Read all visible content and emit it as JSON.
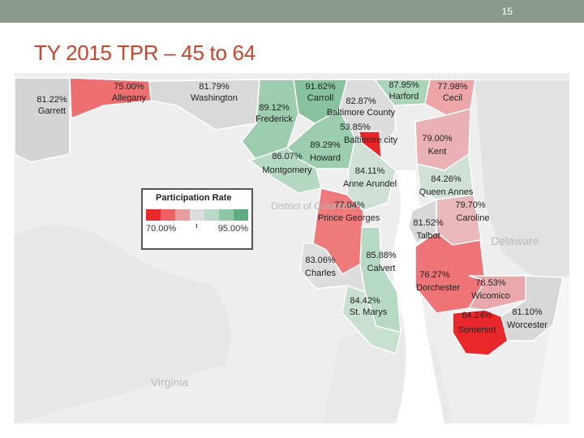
{
  "slide": {
    "page_number": "15",
    "title": "TY 2015 TPR – 45 to 64"
  },
  "legend": {
    "title": "Participation Rate",
    "min_label": "70.00%",
    "max_label": "95.00%",
    "scale_colors": [
      "#e8282b",
      "#ef6063",
      "#e79ca0",
      "#dcdcdc",
      "#b9d8c5",
      "#8fc7a4",
      "#5fae83"
    ]
  },
  "background_labels": [
    "Delaware",
    "Virginia",
    "District of Columbia"
  ],
  "counties": [
    {
      "name": "Garrett",
      "value": "81.22%",
      "color": "#d4d4d4"
    },
    {
      "name": "Allegany",
      "value": "75.00%",
      "color": "#ee6f70"
    },
    {
      "name": "Washington",
      "value": "81.79%",
      "color": "#d9d9d9"
    },
    {
      "name": "Frederick",
      "value": "89.12%",
      "color": "#9ccdae"
    },
    {
      "name": "Carroll",
      "value": "91.62%",
      "color": "#87c19d"
    },
    {
      "name": "Baltimore County",
      "value": "82.87%",
      "color": "#dcdcdc"
    },
    {
      "name": "Harford",
      "value": "87.95%",
      "color": "#a9d4b8"
    },
    {
      "name": "Cecil",
      "value": "77.98%",
      "color": "#eea5a8"
    },
    {
      "name": "Baltimore city",
      "value": "53.85%",
      "color": "#e8262a"
    },
    {
      "name": "Howard",
      "value": "89.29%",
      "color": "#9ccdae"
    },
    {
      "name": "Montgomery",
      "value": "86.07%",
      "color": "#b4d8c1"
    },
    {
      "name": "Anne Arundel",
      "value": "84.11%",
      "color": "#d0e0d5"
    },
    {
      "name": "Kent",
      "value": "79.00%",
      "color": "#eab1b4"
    },
    {
      "name": "Queen Annes",
      "value": "84.26%",
      "color": "#d2e1d6"
    },
    {
      "name": "Prince Georges",
      "value": "77.04%",
      "color": "#ef7a7c"
    },
    {
      "name": "Caroline",
      "value": "79.70%",
      "color": "#e9b8bb"
    },
    {
      "name": "Talbot",
      "value": "81.52%",
      "color": "#d8d8d8"
    },
    {
      "name": "Calvert",
      "value": "85.88%",
      "color": "#b6d9c3"
    },
    {
      "name": "Charles",
      "value": "83.06%",
      "color": "#dddddd"
    },
    {
      "name": "Dorchester",
      "value": "76.27%",
      "color": "#ee7477"
    },
    {
      "name": "St. Marys",
      "value": "84.42%",
      "color": "#c8e0cf"
    },
    {
      "name": "Wicomico",
      "value": "78.53%",
      "color": "#eba8ab"
    },
    {
      "name": "Somerset",
      "value": "64.24%",
      "color": "#e8282b"
    },
    {
      "name": "Worcester",
      "value": "81.10%",
      "color": "#d7d7d7"
    }
  ]
}
